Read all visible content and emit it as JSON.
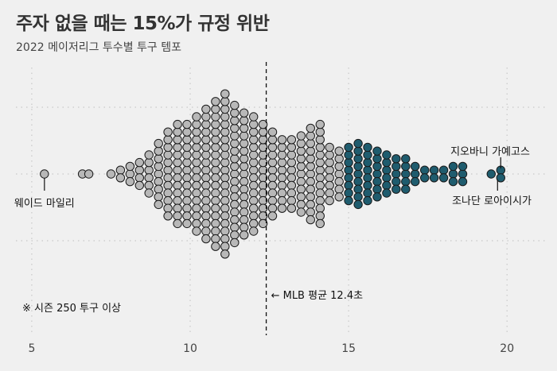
{
  "title": "주자 없을 때는 15%가 규정 위반",
  "subtitle": "2022 메이저리그 투수별 투구 템포",
  "note": "※ 시즌 250 투구 이상",
  "colors": {
    "background": "#f0f0f0",
    "normal_fill": "#b8b8b8",
    "violation_fill": "#1f5c6e",
    "stroke": "#1a1a1a",
    "grid": "#c8c8c8"
  },
  "chart_data": {
    "type": "scatter",
    "subtype": "beeswarm",
    "xlim": [
      4.5,
      21.2
    ],
    "xticks": [
      5,
      10,
      15,
      20
    ],
    "grid": "dotted",
    "violation_threshold": 15,
    "mean": {
      "value": 12.4,
      "label": "← MLB 평균 12.4초"
    },
    "annotations": [
      {
        "label": "웨이드 마일리",
        "x": 5.4
      },
      {
        "label": "지오바니 가예고스",
        "x": 19.8
      },
      {
        "label": "조나단 로아이시가",
        "x": 19.6
      }
    ],
    "bins": [
      {
        "x": 5.4,
        "n": 1
      },
      {
        "x": 6.6,
        "n": 1
      },
      {
        "x": 6.8,
        "n": 1
      },
      {
        "x": 7.5,
        "n": 1
      },
      {
        "x": 7.8,
        "n": 2
      },
      {
        "x": 8.1,
        "n": 3
      },
      {
        "x": 8.4,
        "n": 4
      },
      {
        "x": 8.7,
        "n": 6
      },
      {
        "x": 9.0,
        "n": 9
      },
      {
        "x": 9.3,
        "n": 12
      },
      {
        "x": 9.6,
        "n": 14
      },
      {
        "x": 9.9,
        "n": 14
      },
      {
        "x": 10.2,
        "n": 16
      },
      {
        "x": 10.5,
        "n": 18
      },
      {
        "x": 10.8,
        "n": 20
      },
      {
        "x": 11.1,
        "n": 22
      },
      {
        "x": 11.4,
        "n": 19
      },
      {
        "x": 11.7,
        "n": 17
      },
      {
        "x": 12.0,
        "n": 16
      },
      {
        "x": 12.3,
        "n": 14
      },
      {
        "x": 12.6,
        "n": 12
      },
      {
        "x": 12.9,
        "n": 10
      },
      {
        "x": 13.2,
        "n": 10
      },
      {
        "x": 13.5,
        "n": 11
      },
      {
        "x": 13.8,
        "n": 13
      },
      {
        "x": 14.1,
        "n": 14
      },
      {
        "x": 14.4,
        "n": 8
      },
      {
        "x": 14.7,
        "n": 7
      },
      {
        "x": 15.0,
        "n": 8
      },
      {
        "x": 15.3,
        "n": 9
      },
      {
        "x": 15.6,
        "n": 8
      },
      {
        "x": 15.9,
        "n": 7
      },
      {
        "x": 16.2,
        "n": 6
      },
      {
        "x": 16.5,
        "n": 5
      },
      {
        "x": 16.8,
        "n": 5
      },
      {
        "x": 17.1,
        "n": 3
      },
      {
        "x": 17.4,
        "n": 2
      },
      {
        "x": 17.7,
        "n": 2
      },
      {
        "x": 18.0,
        "n": 2
      },
      {
        "x": 18.3,
        "n": 3
      },
      {
        "x": 18.6,
        "n": 3
      },
      {
        "x": 19.5,
        "n": 1
      },
      {
        "x": 19.8,
        "n": 2
      }
    ]
  }
}
